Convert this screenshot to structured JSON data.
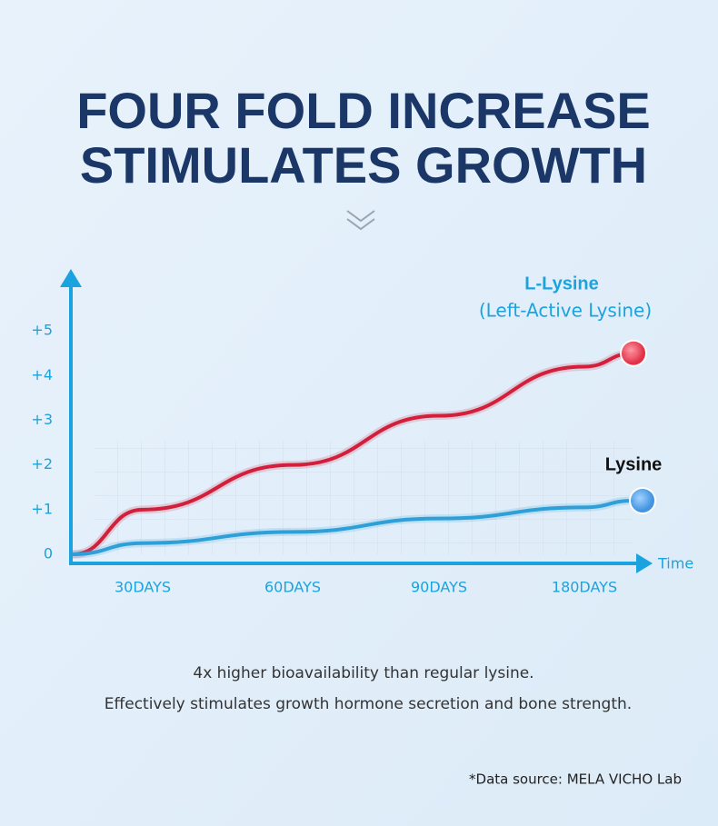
{
  "chart_data": {
    "type": "line",
    "title": [
      "FOUR FOLD INCREASE",
      "STIMULATES GROWTH"
    ],
    "categories": [
      null,
      "30DAYS",
      "60DAYS",
      "90DAYS",
      "180DAYS",
      null
    ],
    "series": [
      {
        "name": "L-Lysine",
        "description": "(Left-Active Lysine)",
        "color": "#d21f3c",
        "values": [
          0,
          1.0,
          2.0,
          3.1,
          4.2,
          4.5
        ]
      },
      {
        "name": "Lysine",
        "color": "#2f9fd8",
        "values": [
          0,
          0.25,
          0.5,
          0.8,
          1.05,
          1.2
        ]
      }
    ],
    "x_label": "Time",
    "ylim": [
      0,
      6.1
    ],
    "yticks": [
      {
        "value": 0,
        "label": "0"
      },
      {
        "value": 1,
        "label": "+1"
      },
      {
        "value": 2,
        "label": "+2"
      },
      {
        "value": 3,
        "label": "+3"
      },
      {
        "value": 4,
        "label": "+4"
      },
      {
        "value": 5,
        "label": "+5"
      }
    ],
    "notes": [
      "4x higher bioavailability than regular lysine.",
      "Effectively stimulates growth hormone secretion and bone strength."
    ],
    "source": "*Data source: MELA VICHO Lab"
  }
}
